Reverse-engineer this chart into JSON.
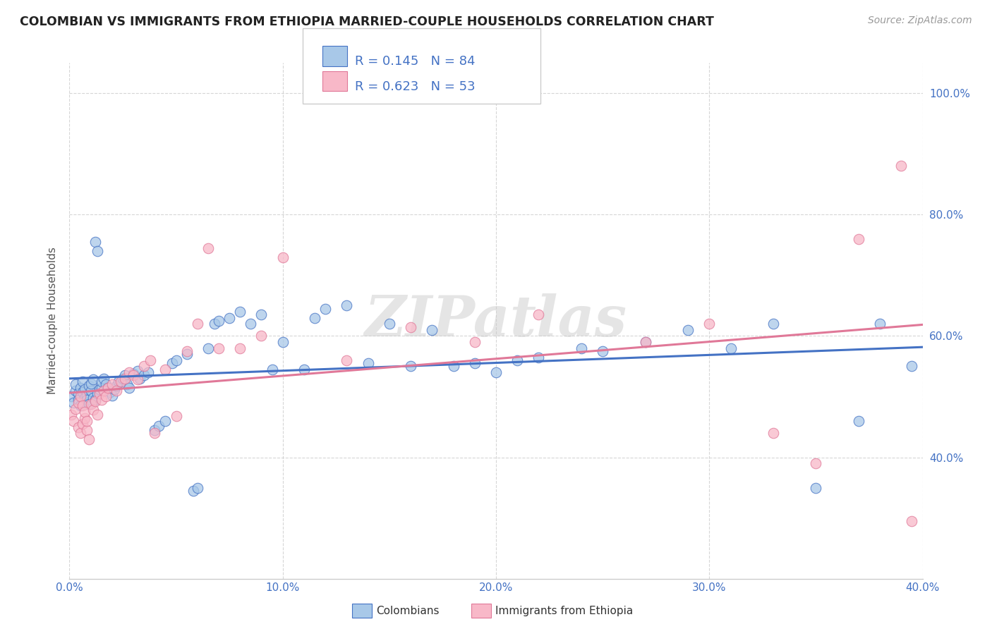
{
  "title": "COLOMBIAN VS IMMIGRANTS FROM ETHIOPIA MARRIED-COUPLE HOUSEHOLDS CORRELATION CHART",
  "source": "Source: ZipAtlas.com",
  "ylabel": "Married-couple Households",
  "xlabel_colombians": "Colombians",
  "xlabel_ethiopia": "Immigrants from Ethiopia",
  "watermark": "ZIPatlas",
  "R_colombian": 0.145,
  "N_colombian": 84,
  "R_ethiopia": 0.623,
  "N_ethiopia": 53,
  "xlim": [
    0.0,
    0.4
  ],
  "ylim": [
    0.2,
    1.05
  ],
  "yticks": [
    0.4,
    0.6,
    0.8,
    1.0
  ],
  "xticks": [
    0.0,
    0.1,
    0.2,
    0.3,
    0.4
  ],
  "color_colombian": "#a8c8e8",
  "color_ethiopia": "#f8b8c8",
  "line_color_colombian": "#4472c4",
  "line_color_ethiopia": "#e07898",
  "background_color": "#ffffff",
  "grid_color": "#cccccc",
  "title_color": "#222222",
  "source_color": "#999999",
  "legend_text_color": "#4472c4",
  "colombian_x": [
    0.001,
    0.002,
    0.003,
    0.003,
    0.004,
    0.004,
    0.005,
    0.005,
    0.006,
    0.006,
    0.007,
    0.007,
    0.008,
    0.008,
    0.009,
    0.009,
    0.01,
    0.01,
    0.011,
    0.011,
    0.012,
    0.012,
    0.013,
    0.013,
    0.014,
    0.015,
    0.015,
    0.016,
    0.017,
    0.018,
    0.019,
    0.02,
    0.021,
    0.022,
    0.023,
    0.025,
    0.026,
    0.027,
    0.028,
    0.03,
    0.032,
    0.033,
    0.035,
    0.037,
    0.04,
    0.042,
    0.045,
    0.048,
    0.05,
    0.055,
    0.058,
    0.06,
    0.065,
    0.068,
    0.07,
    0.075,
    0.08,
    0.085,
    0.09,
    0.095,
    0.1,
    0.11,
    0.115,
    0.12,
    0.13,
    0.14,
    0.15,
    0.16,
    0.17,
    0.18,
    0.19,
    0.2,
    0.21,
    0.22,
    0.24,
    0.25,
    0.27,
    0.29,
    0.31,
    0.33,
    0.35,
    0.37,
    0.38,
    0.395
  ],
  "colombian_y": [
    0.5,
    0.49,
    0.51,
    0.52,
    0.505,
    0.495,
    0.515,
    0.485,
    0.508,
    0.525,
    0.498,
    0.512,
    0.502,
    0.495,
    0.518,
    0.488,
    0.51,
    0.522,
    0.498,
    0.528,
    0.755,
    0.495,
    0.74,
    0.505,
    0.512,
    0.515,
    0.525,
    0.53,
    0.52,
    0.515,
    0.508,
    0.502,
    0.512,
    0.518,
    0.525,
    0.53,
    0.535,
    0.52,
    0.515,
    0.538,
    0.542,
    0.53,
    0.535,
    0.54,
    0.445,
    0.452,
    0.46,
    0.555,
    0.56,
    0.57,
    0.345,
    0.35,
    0.58,
    0.62,
    0.625,
    0.63,
    0.64,
    0.62,
    0.635,
    0.545,
    0.59,
    0.545,
    0.63,
    0.645,
    0.65,
    0.555,
    0.62,
    0.55,
    0.61,
    0.55,
    0.555,
    0.54,
    0.56,
    0.565,
    0.58,
    0.575,
    0.59,
    0.61,
    0.58,
    0.62,
    0.35,
    0.46,
    0.62,
    0.55
  ],
  "ethiopia_x": [
    0.001,
    0.002,
    0.003,
    0.004,
    0.004,
    0.005,
    0.005,
    0.006,
    0.006,
    0.007,
    0.007,
    0.008,
    0.008,
    0.009,
    0.01,
    0.011,
    0.012,
    0.013,
    0.014,
    0.015,
    0.016,
    0.017,
    0.018,
    0.02,
    0.022,
    0.024,
    0.026,
    0.028,
    0.03,
    0.032,
    0.035,
    0.038,
    0.04,
    0.045,
    0.05,
    0.055,
    0.06,
    0.065,
    0.07,
    0.08,
    0.09,
    0.1,
    0.13,
    0.16,
    0.19,
    0.22,
    0.27,
    0.3,
    0.33,
    0.35,
    0.37,
    0.39,
    0.395
  ],
  "ethiopia_y": [
    0.47,
    0.46,
    0.48,
    0.45,
    0.49,
    0.44,
    0.5,
    0.455,
    0.485,
    0.465,
    0.475,
    0.445,
    0.46,
    0.43,
    0.488,
    0.478,
    0.492,
    0.47,
    0.505,
    0.495,
    0.51,
    0.5,
    0.515,
    0.52,
    0.51,
    0.525,
    0.53,
    0.54,
    0.535,
    0.528,
    0.55,
    0.56,
    0.44,
    0.545,
    0.468,
    0.575,
    0.62,
    0.745,
    0.58,
    0.58,
    0.6,
    0.73,
    0.56,
    0.615,
    0.59,
    0.635,
    0.59,
    0.62,
    0.44,
    0.39,
    0.76,
    0.88,
    0.295
  ]
}
